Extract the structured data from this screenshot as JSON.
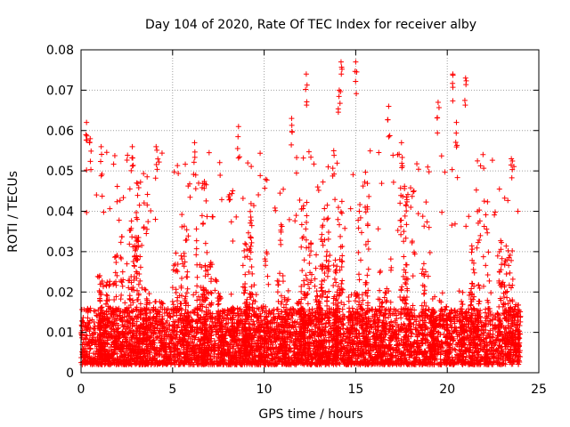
{
  "chart_data": {
    "type": "scatter",
    "title": "Day 104 of 2020, Rate Of TEC Index for receiver alby",
    "xlabel": "GPS time / hours",
    "ylabel": "ROTI / TECUs",
    "xlim": [
      0,
      25
    ],
    "ylim": [
      0,
      0.08
    ],
    "x_ticks": [
      0,
      5,
      10,
      15,
      20,
      25
    ],
    "y_ticks": [
      0,
      0.01,
      0.02,
      0.03,
      0.04,
      0.05,
      0.06,
      0.07,
      0.08
    ],
    "x_tick_labels": [
      "0",
      "5",
      "10",
      "15",
      "20",
      "25"
    ],
    "y_tick_labels": [
      "0",
      "0.01",
      "0.02",
      "0.03",
      "0.04",
      "0.05",
      "0.06",
      "0.07",
      "0.08"
    ],
    "grid": true,
    "marker": "+",
    "color": "#ff0000",
    "x_range_of_points": [
      0,
      24
    ],
    "series": [
      {
        "values_sample": [
          [
            0.3,
            0.062
          ],
          [
            0.5,
            0.058
          ],
          [
            1.1,
            0.056
          ],
          [
            2.8,
            0.056
          ],
          [
            4.1,
            0.056
          ],
          [
            6.2,
            0.057
          ],
          [
            8.6,
            0.061
          ],
          [
            11.5,
            0.063
          ],
          [
            12.3,
            0.074
          ],
          [
            14.2,
            0.077
          ],
          [
            15.0,
            0.077
          ],
          [
            16.8,
            0.066
          ],
          [
            19.5,
            0.067
          ],
          [
            20.3,
            0.074
          ],
          [
            21.0,
            0.073
          ],
          [
            23.5,
            0.053
          ],
          [
            13.8,
            0.055
          ],
          [
            14.1,
            0.07
          ],
          [
            20.5,
            0.062
          ],
          [
            17.5,
            0.057
          ]
        ]
      }
    ]
  }
}
